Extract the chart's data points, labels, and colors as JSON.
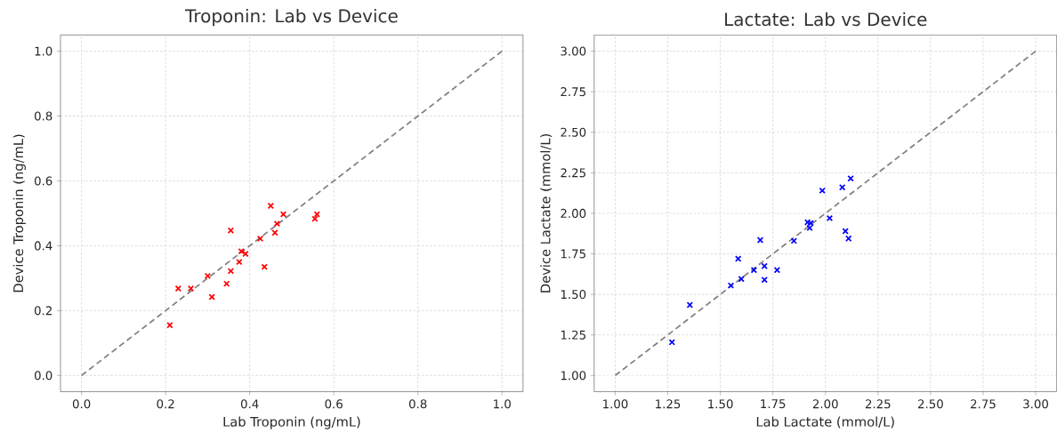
{
  "chart_data": [
    {
      "type": "scatter",
      "title": "Troponin: Lab vs Device",
      "xlabel": "Lab Troponin (ng/mL)",
      "ylabel": "Device Troponin (ng/mL)",
      "grid": true,
      "xlim": [
        -0.05,
        1.05
      ],
      "ylim": [
        -0.05,
        1.05
      ],
      "xticks": [
        {
          "value": 0,
          "label": "0.0"
        },
        {
          "value": 0.2,
          "label": "0.2"
        },
        {
          "value": 0.4,
          "label": "0.4"
        },
        {
          "value": 0.6,
          "label": "0.6"
        },
        {
          "value": 0.8,
          "label": "0.8"
        },
        {
          "value": 1,
          "label": "1.0"
        }
      ],
      "yticks": [
        {
          "value": 0,
          "label": "0.0"
        },
        {
          "value": 0.2,
          "label": "0.2"
        },
        {
          "value": 0.4,
          "label": "0.4"
        },
        {
          "value": 0.6,
          "label": "0.6"
        },
        {
          "value": 0.8,
          "label": "0.8"
        },
        {
          "value": 1,
          "label": "1.0"
        }
      ],
      "series": [
        {
          "color": "#ff0000",
          "marker": "cross",
          "x": [
            0.21,
            0.23,
            0.26,
            0.3,
            0.31,
            0.345,
            0.355,
            0.355,
            0.375,
            0.38,
            0.39,
            0.425,
            0.435,
            0.45,
            0.46,
            0.465,
            0.48,
            0.555,
            0.56
          ],
          "values": [
            0.155,
            0.268,
            0.268,
            0.307,
            0.242,
            0.283,
            0.447,
            0.322,
            0.35,
            0.383,
            0.375,
            0.422,
            0.335,
            0.523,
            0.44,
            0.468,
            0.497,
            0.483,
            0.497
          ]
        },
        {
          "type": "line",
          "marker": "none",
          "line_style": "dashed",
          "color": "#808080",
          "x": [
            0,
            1
          ],
          "values": [
            0,
            1
          ]
        }
      ]
    },
    {
      "type": "scatter",
      "title": "Lactate: Lab vs Device",
      "xlabel": "Lab Lactate (mmol/L)",
      "ylabel": "Device Lactate (mmol/L)",
      "grid": true,
      "xlim": [
        0.9,
        3.1
      ],
      "ylim": [
        0.9,
        3.1
      ],
      "xticks": [
        {
          "value": 1,
          "label": "1.00"
        },
        {
          "value": 1.25,
          "label": "1.25"
        },
        {
          "value": 1.5,
          "label": "1.50"
        },
        {
          "value": 1.75,
          "label": "1.75"
        },
        {
          "value": 2,
          "label": "2.00"
        },
        {
          "value": 2.25,
          "label": "2.25"
        },
        {
          "value": 2.5,
          "label": "2.50"
        },
        {
          "value": 2.75,
          "label": "2.75"
        },
        {
          "value": 3,
          "label": "3.00"
        }
      ],
      "yticks": [
        {
          "value": 1,
          "label": "1.00"
        },
        {
          "value": 1.25,
          "label": "1.25"
        },
        {
          "value": 1.5,
          "label": "1.50"
        },
        {
          "value": 1.75,
          "label": "1.75"
        },
        {
          "value": 2,
          "label": "2.00"
        },
        {
          "value": 2.25,
          "label": "2.25"
        },
        {
          "value": 2.5,
          "label": "2.50"
        },
        {
          "value": 2.75,
          "label": "2.75"
        },
        {
          "value": 3,
          "label": "3.00"
        }
      ],
      "series": [
        {
          "color": "#0000ff",
          "marker": "cross",
          "x": [
            1.27,
            1.355,
            1.55,
            1.585,
            1.6,
            1.66,
            1.69,
            1.71,
            1.71,
            1.77,
            1.85,
            1.925,
            1.915,
            1.93,
            2.02,
            1.985,
            2.08,
            2.095,
            2.11,
            2.12
          ],
          "values": [
            1.205,
            1.435,
            1.555,
            1.72,
            1.595,
            1.65,
            1.835,
            1.675,
            1.59,
            1.65,
            1.83,
            1.91,
            1.945,
            1.94,
            1.97,
            2.14,
            2.16,
            1.89,
            1.845,
            2.215
          ]
        },
        {
          "type": "line",
          "marker": "none",
          "line_style": "dashed",
          "color": "#808080",
          "x": [
            1,
            3
          ],
          "values": [
            1,
            3
          ]
        }
      ]
    }
  ]
}
